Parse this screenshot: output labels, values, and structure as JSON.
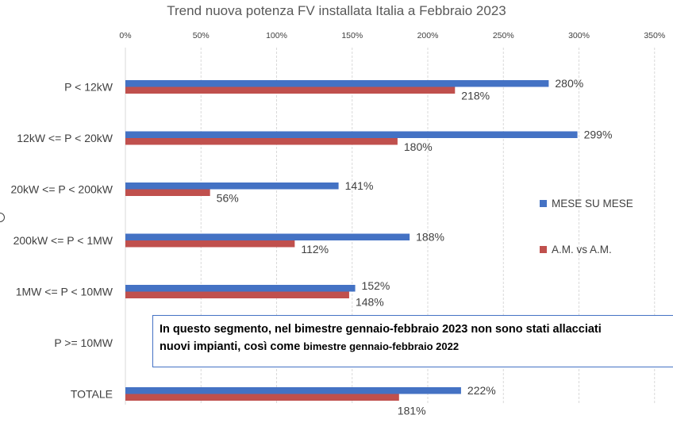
{
  "chart_data": {
    "type": "bar",
    "orientation": "horizontal",
    "title": "Trend nuova potenza FV installata Italia a Febbraio 2023",
    "categories": [
      "P < 12kW",
      "12kW <= P < 20kW",
      "20kW <= P < 200kW",
      "200kW <= P < 1MW",
      "1MW <= P < 10MW",
      "P >= 10MW",
      "TOTALE"
    ],
    "series": [
      {
        "name": "MESE SU  MESE",
        "color": "#4472c4",
        "values": [
          280,
          299,
          141,
          188,
          152,
          null,
          222
        ],
        "labels": [
          "280%",
          "299%",
          "141%",
          "188%",
          "152%",
          "",
          "222%"
        ]
      },
      {
        "name": "A.M. vs A.M.",
        "color": "#c0504d",
        "values": [
          218,
          180,
          56,
          112,
          148,
          null,
          181
        ],
        "labels": [
          "218%",
          "180%",
          "56%",
          "112%",
          "148%",
          "",
          "181%"
        ]
      }
    ],
    "xlim": [
      0,
      350
    ],
    "xticks": [
      "0%",
      "50%",
      "100%",
      "150%",
      "200%",
      "250%",
      "300%",
      "350%"
    ],
    "xtick_values": [
      0,
      50,
      100,
      150,
      200,
      250,
      300,
      350
    ],
    "grid": "vertical",
    "legend_position": "right"
  },
  "annotation": {
    "line1": "In questo segmento, nel bimestre gennaio-febbraio 2023 non sono stati allacciati",
    "line2_main": "nuovi impianti, così come ",
    "line2_small": "bimestre gennaio-febbraio 2022"
  }
}
